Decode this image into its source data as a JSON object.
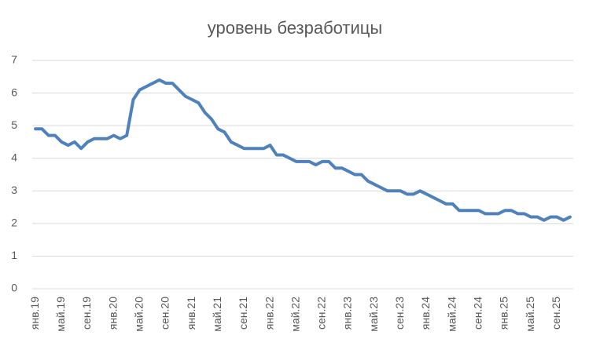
{
  "chart_data": {
    "type": "line",
    "title": "уровень безработицы",
    "categories": [
      "янв.19",
      null,
      null,
      null,
      "май.19",
      null,
      null,
      null,
      "сен.19",
      null,
      null,
      null,
      "янв.20",
      null,
      null,
      null,
      "май.20",
      null,
      null,
      null,
      "сен.20",
      null,
      null,
      null,
      "янв.21",
      null,
      null,
      null,
      "май.21",
      null,
      null,
      null,
      "сен.21",
      null,
      null,
      null,
      "янв.22",
      null,
      null,
      null,
      "май.22",
      null,
      null,
      null,
      "сен.22",
      null,
      null,
      null,
      "янв.23",
      null,
      null,
      null,
      "май.23",
      null,
      null,
      null,
      "сен.23",
      null,
      null,
      null,
      "янв.24",
      null,
      null,
      null,
      "май.24",
      null,
      null,
      null,
      "сен.24",
      null,
      null,
      null,
      "янв.25",
      null,
      null,
      null,
      "май.25",
      null,
      null,
      null,
      "сен.25",
      null,
      null
    ],
    "series": [
      {
        "name": "уровень безработицы",
        "color": "#4f81bd",
        "values": [
          4.9,
          4.9,
          4.7,
          4.7,
          4.5,
          4.4,
          4.5,
          4.3,
          4.5,
          4.6,
          4.6,
          4.6,
          4.7,
          4.6,
          4.7,
          5.8,
          6.1,
          6.2,
          6.3,
          6.4,
          6.3,
          6.3,
          6.1,
          5.9,
          5.8,
          5.7,
          5.4,
          5.2,
          4.9,
          4.8,
          4.5,
          4.4,
          4.3,
          4.3,
          4.3,
          4.3,
          4.4,
          4.1,
          4.1,
          4.0,
          3.9,
          3.9,
          3.9,
          3.8,
          3.9,
          3.9,
          3.7,
          3.7,
          3.6,
          3.5,
          3.5,
          3.3,
          3.2,
          3.1,
          3.0,
          3.0,
          3.0,
          2.9,
          2.9,
          3.0,
          2.9,
          2.8,
          2.7,
          2.6,
          2.6,
          2.4,
          2.4,
          2.4,
          2.4,
          2.3,
          2.3,
          2.3,
          2.4,
          2.4,
          2.3,
          2.3,
          2.2,
          2.2,
          2.1,
          2.2,
          2.2,
          2.1,
          2.2
        ]
      }
    ],
    "ylim": [
      0,
      7
    ],
    "yticks": [
      0,
      1,
      2,
      3,
      4,
      5,
      6,
      7
    ],
    "grid": true
  }
}
